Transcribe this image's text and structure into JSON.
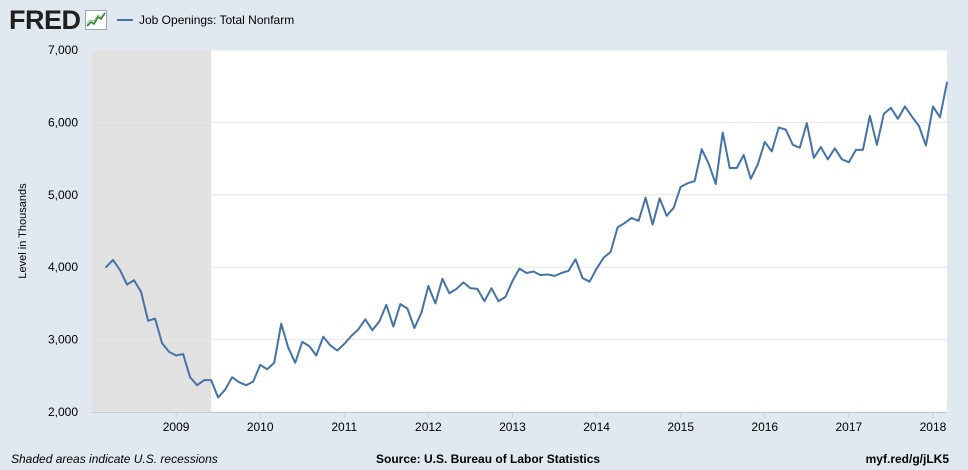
{
  "header": {
    "logo_text": "FRED",
    "logo_icon": "fred-chart-icon"
  },
  "footer": {
    "recession_note": "Shaded areas indicate U.S. recessions",
    "source": "Source: U.S. Bureau of Labor Statistics",
    "short_url": "myf.red/g/jLK5"
  },
  "colors": {
    "page_background": "#e1e9f0",
    "plot_background": "#ffffff",
    "recession_shade": "#e1e1e1",
    "series_line": "#4572a7",
    "grid": "#e6e6e6"
  },
  "chart_data": {
    "type": "line",
    "title": "",
    "xlabel": "",
    "ylabel": "Level in Thousands",
    "ylim": [
      2000,
      7000
    ],
    "yticks": [
      2000,
      3000,
      4000,
      5000,
      6000,
      7000
    ],
    "ytick_labels": [
      "2,000",
      "3,000",
      "4,000",
      "5,000",
      "6,000",
      "7,000"
    ],
    "xlim": [
      2008.0,
      2018.167
    ],
    "xticks": [
      2009,
      2010,
      2011,
      2012,
      2013,
      2014,
      2015,
      2016,
      2017,
      2018
    ],
    "xtick_labels": [
      "2009",
      "2010",
      "2011",
      "2012",
      "2013",
      "2014",
      "2015",
      "2016",
      "2017",
      "2018"
    ],
    "recessions": [
      {
        "start": 2008.0,
        "end": 2009.417,
        "label": "recession"
      }
    ],
    "series": [
      {
        "name": "Job Openings: Total Nonfarm",
        "start_year": 2008,
        "start_month": 3,
        "frequency": "monthly",
        "values": [
          4000,
          4100,
          3960,
          3760,
          3820,
          3660,
          3260,
          3290,
          2950,
          2830,
          2780,
          2800,
          2480,
          2370,
          2440,
          2440,
          2200,
          2310,
          2480,
          2410,
          2370,
          2420,
          2650,
          2590,
          2680,
          3220,
          2890,
          2680,
          2970,
          2910,
          2780,
          3040,
          2920,
          2850,
          2940,
          3050,
          3140,
          3280,
          3130,
          3250,
          3480,
          3180,
          3490,
          3430,
          3160,
          3370,
          3740,
          3500,
          3840,
          3640,
          3700,
          3790,
          3710,
          3700,
          3530,
          3710,
          3530,
          3590,
          3810,
          3980,
          3920,
          3940,
          3890,
          3900,
          3880,
          3920,
          3950,
          4110,
          3850,
          3800,
          3980,
          4130,
          4210,
          4550,
          4610,
          4680,
          4640,
          4960,
          4590,
          4950,
          4710,
          4820,
          5110,
          5160,
          5190,
          5630,
          5430,
          5150,
          5860,
          5370,
          5370,
          5550,
          5220,
          5420,
          5730,
          5600,
          5930,
          5900,
          5690,
          5650,
          5990,
          5510,
          5660,
          5490,
          5640,
          5490,
          5450,
          5620,
          5620,
          6090,
          5690,
          6120,
          6200,
          6050,
          6220,
          6080,
          5950,
          5680,
          6220,
          6070,
          6550
        ]
      }
    ]
  }
}
